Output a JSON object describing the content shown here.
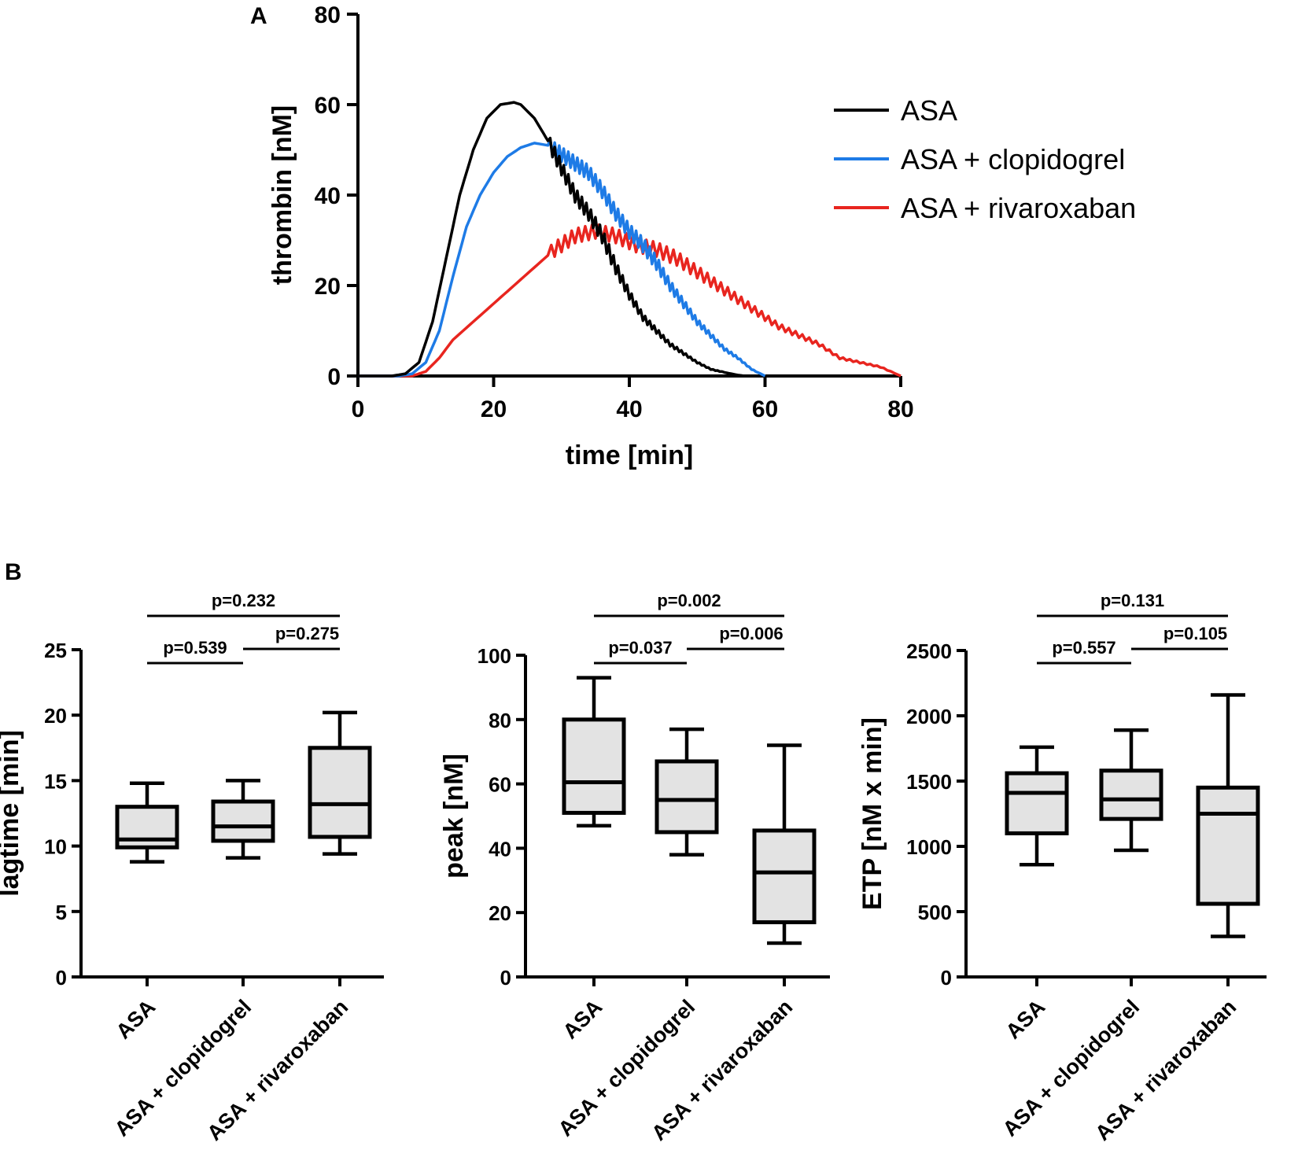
{
  "chart_data": [
    {
      "type": "line",
      "panel": "A",
      "title": "",
      "xlabel": "time [min]",
      "ylabel": "thrombin [nM]",
      "xlim": [
        0,
        80
      ],
      "ylim": [
        0,
        80
      ],
      "xticks": [
        0,
        20,
        40,
        60,
        80
      ],
      "yticks": [
        0,
        20,
        40,
        60,
        80
      ],
      "legend_position": "top-right",
      "series": [
        {
          "name": "ASA",
          "color": "#000000",
          "x": [
            0,
            5,
            7,
            9,
            11,
            13,
            15,
            17,
            19,
            21,
            23,
            24,
            26,
            28,
            30,
            32,
            34,
            36,
            38,
            40,
            42,
            44,
            46,
            48,
            50,
            52,
            54,
            56,
            57
          ],
          "y": [
            0,
            0,
            0.5,
            3,
            12,
            26,
            40,
            50,
            57,
            60,
            60.5,
            60,
            57,
            52,
            46,
            40,
            36,
            31,
            24,
            18,
            13,
            10,
            7,
            5,
            3,
            1.5,
            0.8,
            0.2,
            0
          ]
        },
        {
          "name": "ASA + clopidogrel",
          "color": "#1e7be6",
          "x": [
            0,
            6,
            8,
            10,
            12,
            14,
            16,
            18,
            20,
            22,
            24,
            26,
            28,
            30,
            32,
            34,
            36,
            38,
            40,
            42,
            44,
            46,
            48,
            50,
            52,
            54,
            56,
            58,
            60
          ],
          "y": [
            0,
            0,
            0.5,
            3,
            10,
            22,
            33,
            40,
            45,
            48.5,
            50.5,
            51.5,
            51,
            49,
            47,
            45,
            41,
            36,
            32,
            29,
            25,
            20,
            16,
            12,
            9,
            6,
            4,
            1.5,
            0
          ]
        },
        {
          "name": "ASA + rivaroxaban",
          "color": "#e8251f",
          "x": [
            0,
            8,
            10,
            12,
            14,
            17,
            20,
            23,
            26,
            29,
            32,
            35,
            38,
            41,
            44,
            47,
            50,
            53,
            56,
            59,
            62,
            65,
            68,
            71,
            74,
            77,
            80
          ],
          "y": [
            0,
            0,
            1,
            4,
            8,
            12,
            16,
            20,
            24,
            28,
            31,
            32,
            31,
            29,
            28,
            26,
            23,
            20,
            17,
            14,
            11,
            9,
            7,
            4,
            3,
            2,
            0
          ]
        }
      ]
    },
    {
      "type": "box",
      "panel": "B",
      "ylabel": "lagtime [min]",
      "ylim": [
        0,
        25
      ],
      "yticks": [
        0,
        5,
        10,
        15,
        20,
        25
      ],
      "categories": [
        "ASA",
        "ASA + clopidogrel",
        "ASA + rivaroxaban"
      ],
      "boxes": [
        {
          "min": 8.8,
          "q1": 9.9,
          "median": 10.5,
          "q3": 13,
          "max": 14.8
        },
        {
          "min": 9.1,
          "q1": 10.4,
          "median": 11.5,
          "q3": 13.4,
          "max": 15
        },
        {
          "min": 9.4,
          "q1": 10.7,
          "median": 13.2,
          "q3": 17.5,
          "max": 20.2
        }
      ],
      "comparisons": [
        {
          "from": 0,
          "to": 2,
          "label": "p=0.232"
        },
        {
          "from": 0,
          "to": 1,
          "label": "p=0.539"
        },
        {
          "from": 1,
          "to": 2,
          "label": "p=0.275"
        }
      ]
    },
    {
      "type": "box",
      "panel": "B",
      "ylabel": "peak [nM]",
      "ylim": [
        0,
        100
      ],
      "yticks": [
        0,
        20,
        40,
        60,
        80,
        100
      ],
      "categories": [
        "ASA",
        "ASA + clopidogrel",
        "ASA + rivaroxaban"
      ],
      "boxes": [
        {
          "min": 47,
          "q1": 51,
          "median": 60.5,
          "q3": 80,
          "max": 93
        },
        {
          "min": 38,
          "q1": 45,
          "median": 55,
          "q3": 67,
          "max": 77
        },
        {
          "min": 10.5,
          "q1": 17,
          "median": 32.5,
          "q3": 45.5,
          "max": 72
        }
      ],
      "comparisons": [
        {
          "from": 0,
          "to": 2,
          "label": "p=0.002"
        },
        {
          "from": 0,
          "to": 1,
          "label": "p=0.037"
        },
        {
          "from": 1,
          "to": 2,
          "label": "p=0.006"
        }
      ]
    },
    {
      "type": "box",
      "panel": "B",
      "ylabel": "ETP  [nM x min]",
      "ylim": [
        0,
        2500
      ],
      "yticks": [
        0,
        500,
        1000,
        1500,
        2000,
        2500
      ],
      "categories": [
        "ASA",
        "ASA + clopidogrel",
        "ASA + rivaroxaban"
      ],
      "boxes": [
        {
          "min": 860,
          "q1": 1100,
          "median": 1410,
          "q3": 1560,
          "max": 1760
        },
        {
          "min": 970,
          "q1": 1210,
          "median": 1360,
          "q3": 1580,
          "max": 1890
        },
        {
          "min": 310,
          "q1": 560,
          "median": 1250,
          "q3": 1450,
          "max": 2160
        }
      ],
      "comparisons": [
        {
          "from": 0,
          "to": 2,
          "label": "p=0.131"
        },
        {
          "from": 0,
          "to": 1,
          "label": "p=0.557"
        },
        {
          "from": 1,
          "to": 2,
          "label": "p=0.105"
        }
      ]
    }
  ],
  "labels": {
    "panel_a": "A",
    "panel_b": "B"
  }
}
